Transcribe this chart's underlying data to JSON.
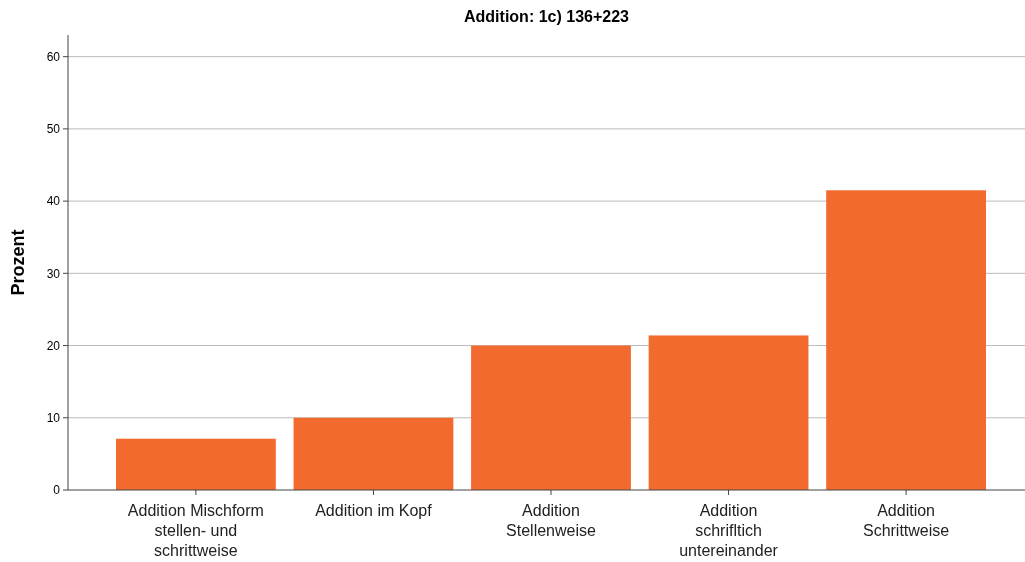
{
  "chart_data": {
    "type": "bar",
    "title": "Addition: 1c) 136+223",
    "ylabel": "Prozent",
    "categories": [
      "Addition Mischform stellen- und schrittweise",
      "Addition im Kopf",
      "Addition Stellenweise",
      "Addition schrifltich untereinander",
      "Addition Schrittweise"
    ],
    "values": [
      7.1,
      10,
      20,
      21.4,
      41.5
    ],
    "color": "#f26a2e",
    "ylim": [
      0,
      63
    ],
    "yticks": [
      0,
      10,
      20,
      30,
      40,
      50,
      60
    ],
    "grid": "y"
  }
}
